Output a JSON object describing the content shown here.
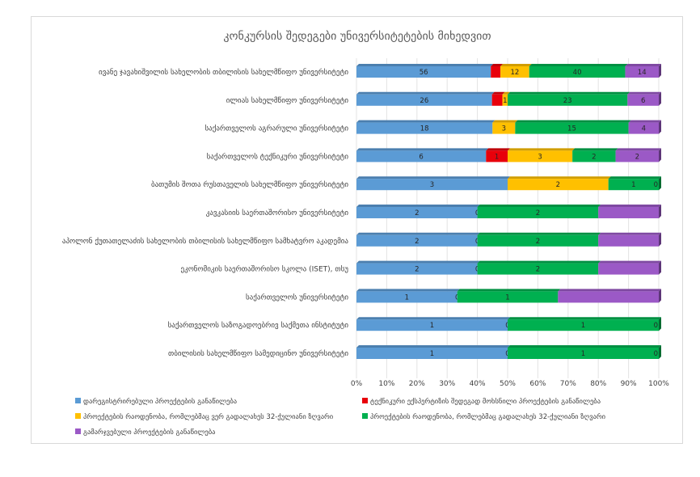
{
  "chart_data": {
    "type": "bar",
    "orientation": "horizontal",
    "stacked": "percent",
    "title": "კონკურსის შედეგები უნივერსიტეტების მიხედვით",
    "categories": [
      "ივანე ჯავახიშვილის სახელობის თბილისის სახელმწიფო უნივერსიტეტი",
      "ილიას სახელმწიფო უნივერსიტეტი",
      "საქართველოს აგრარული უნივერსიტეტი",
      "საქართველოს ტექნიკური უნივერსიტეტი",
      "ბათუმის შოთა რუსთაველის სახელმწიფო უნივერსიტეტი",
      "კავკასიის საერთაშორისო უნივერსიტეტი",
      "აპოლონ ქუთათელაძის სახელობის თბილისის სახელმწიფო სამხატვრო აკადემია",
      "ეკონომიკის საერთაშორისო სკოლა (ISET), თსუ",
      "საქართველოს უნივერსიტეტი",
      "საქართველოს საზოგადოებრივ საქმეთა ინსტიტუტი",
      "თბილისის სახელმწიფო სამედიცინო უნივერსიტეტი"
    ],
    "series": [
      {
        "name": "დარეგისტრირებული პროექტების განაწილება",
        "color": "#5b9bd5",
        "values": [
          56,
          26,
          18,
          6,
          3,
          2,
          2,
          2,
          1,
          1,
          1
        ]
      },
      {
        "name": "ტექნიკური ექსპერტიზის შედეგად მოხსნილი პროექტების განაწილება",
        "color": "#e8000b",
        "values": [
          4,
          2,
          0,
          1,
          0,
          0,
          0,
          0,
          0,
          0,
          0
        ]
      },
      {
        "name": "პროექტების რაოდენობა, რომლებმაც ვერ გადალახეს 32-ქულიანი ზღვარი",
        "color": "#ffc000",
        "values": [
          12,
          1,
          3,
          3,
          2,
          0,
          0,
          0,
          0,
          0,
          0
        ]
      },
      {
        "name": "პროექტების რაოდენობა, რომლებმაც გადალახეს 32-ქულიანი ზღვარი",
        "color": "#00b050",
        "values": [
          40,
          23,
          15,
          2,
          1,
          2,
          2,
          2,
          1,
          1,
          1
        ]
      },
      {
        "name": "გამარჯვებული პროექტების განაწილება",
        "color": "#9b59c6",
        "values": [
          14,
          6,
          4,
          2,
          0,
          1,
          1,
          1,
          1,
          0,
          0
        ]
      }
    ],
    "hidden_zero_labels": [
      [
        false,
        true,
        false,
        false,
        false
      ],
      [
        false,
        true,
        false,
        false,
        false
      ],
      [
        false,
        true,
        false,
        false,
        false
      ],
      [
        false,
        false,
        false,
        false,
        false
      ],
      [
        false,
        true,
        false,
        false,
        false
      ],
      [
        false,
        true,
        false,
        false,
        true
      ],
      [
        false,
        true,
        false,
        false,
        true
      ],
      [
        false,
        true,
        false,
        false,
        true
      ],
      [
        false,
        true,
        false,
        false,
        true
      ],
      [
        false,
        true,
        false,
        false,
        false
      ],
      [
        false,
        true,
        false,
        false,
        false
      ]
    ],
    "xlim": [
      0,
      100
    ],
    "xticks": [
      "0%",
      "10%",
      "20%",
      "30%",
      "40%",
      "50%",
      "60%",
      "70%",
      "80%",
      "90%",
      "100%"
    ],
    "legend": "bottom",
    "grid": true
  }
}
